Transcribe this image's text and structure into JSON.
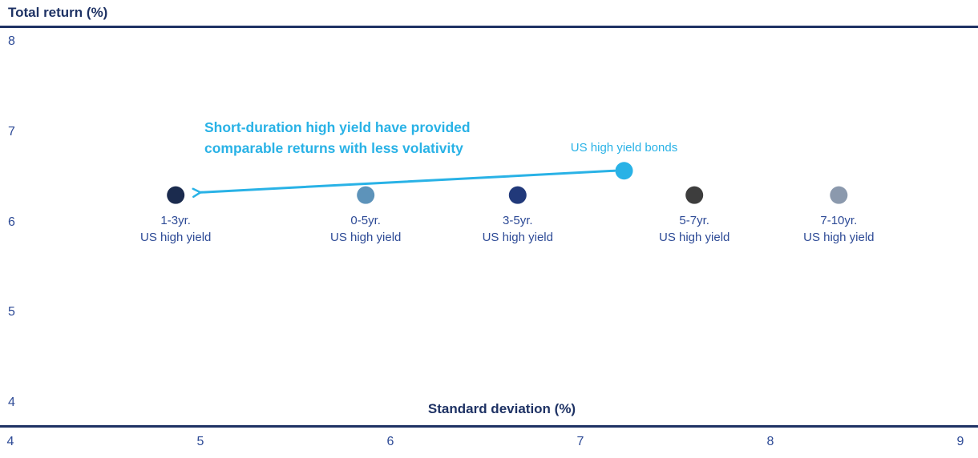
{
  "chart_data": {
    "type": "scatter",
    "title": "Total return (%)",
    "ylabel": "Total return (%)",
    "xlabel": "Standard deviation (%)",
    "xlim": [
      4,
      9
    ],
    "ylim": [
      4,
      8
    ],
    "x_ticks": [
      "4",
      "5",
      "6",
      "7",
      "8",
      "9"
    ],
    "y_ticks": [
      "8",
      "7",
      "6",
      "5",
      "4"
    ],
    "grid": "off",
    "legend": "none",
    "points": [
      {
        "name": "1-3yr-us-high-yield",
        "label": [
          "1-3yr.",
          "US high yield"
        ],
        "x": 4.87,
        "y": 6.3,
        "color": "#1b2b4e",
        "label_position": "below"
      },
      {
        "name": "0-5yr-us-high-yield",
        "label": [
          "0-5yr.",
          "US high yield"
        ],
        "x": 5.87,
        "y": 6.3,
        "color": "#5d93ba",
        "label_position": "below"
      },
      {
        "name": "3-5yr-us-high-yield",
        "label": [
          "3-5yr.",
          "US high yield"
        ],
        "x": 6.67,
        "y": 6.3,
        "color": "#21397a",
        "label_position": "below"
      },
      {
        "name": "us-high-yield-bonds",
        "label": [
          "US high yield bonds"
        ],
        "x": 7.23,
        "y": 6.57,
        "color": "#29b2e6",
        "label_position": "above",
        "label_color": "#29b2e6"
      },
      {
        "name": "5-7yr-us-high-yield",
        "label": [
          "5-7yr.",
          "US high yield"
        ],
        "x": 7.6,
        "y": 6.3,
        "color": "#3d3d3d",
        "label_position": "below"
      },
      {
        "name": "7-10yr-us-high-yield",
        "label": [
          "7-10yr.",
          "US high yield"
        ],
        "x": 8.36,
        "y": 6.3,
        "color": "#8b99ad",
        "label_position": "below"
      }
    ],
    "annotation": {
      "lines": [
        "Short-duration high yield have provided",
        "comparable returns with less volativity"
      ],
      "color": "#29b2e6"
    },
    "arrow": {
      "from_x": 7.18,
      "from_y": 6.57,
      "to_x": 5.0,
      "to_y": 6.33,
      "color": "#29b2e6"
    },
    "colors": {
      "axis_line": "#1e3264",
      "title_text": "#1e3264",
      "tick_text": "#2d4a96",
      "point_label_text": "#2d4a96",
      "accent_cyan": "#29b2e6"
    }
  }
}
